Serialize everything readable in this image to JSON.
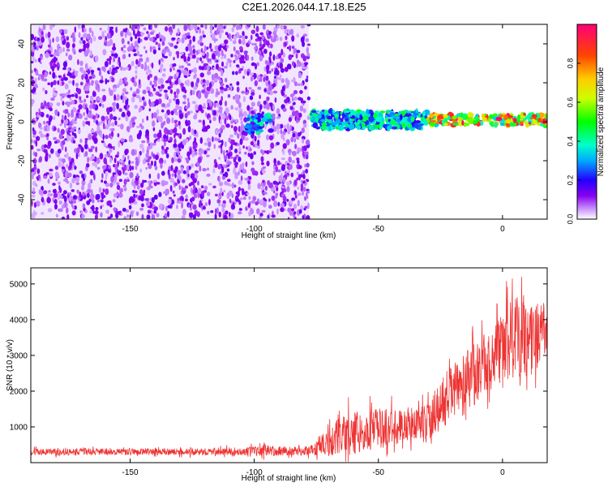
{
  "title": "C2E1.2026.044.17.18.E25",
  "colors": {
    "line": "#ee3333",
    "axis": "#000000",
    "background": "#ffffff"
  },
  "chart_data": [
    {
      "type": "heatmap",
      "name": "spectrogram",
      "xlabel": "Height of straight line (km)",
      "ylabel": "Frequency (Hz)",
      "xlim": [
        -190,
        18
      ],
      "ylim": [
        -50,
        50
      ],
      "xticks": [
        -150,
        -100,
        -50,
        0
      ],
      "xtick_labels": [
        "-150",
        "-100",
        "-50",
        "0"
      ],
      "yticks": [
        -40,
        -20,
        0,
        20,
        40
      ],
      "ytick_labels": [
        "-40",
        "-20",
        "0",
        "20",
        "40"
      ],
      "colorbar": {
        "label": "Normalized spectral amplitude",
        "range": [
          0,
          1
        ],
        "ticks": [
          0.0,
          0.2,
          0.4,
          0.6,
          0.8
        ],
        "tick_labels": [
          "0.0",
          "0.2",
          "0.4",
          "0.6",
          "0.8"
        ]
      },
      "regions": [
        {
          "x_from": -190,
          "x_to": -78,
          "freq_from": -50,
          "freq_to": 50,
          "amplitude": 0.15,
          "note": "broadband noise"
        },
        {
          "x_from": -103,
          "x_to": -93,
          "freq_from": -6,
          "freq_to": 4,
          "amplitude": 0.4
        },
        {
          "x_from": -77,
          "x_to": -30,
          "freq_from": -4,
          "freq_to": 6,
          "amplitude": 0.45
        },
        {
          "x_from": -30,
          "x_to": 18,
          "freq_from": -2,
          "freq_to": 4,
          "amplitude": 0.9,
          "note": "narrow tone near 2 Hz"
        }
      ]
    },
    {
      "type": "line",
      "name": "snr",
      "xlabel": "Height of straight line (km)",
      "ylabel": "SNR (10 * v/v)",
      "xlim": [
        -190,
        18
      ],
      "ylim": [
        0,
        5450
      ],
      "xticks": [
        -150,
        -100,
        -50,
        0
      ],
      "xtick_labels": [
        "-150",
        "-100",
        "-50",
        "0"
      ],
      "yticks": [
        1000,
        2000,
        3000,
        4000,
        5000
      ],
      "ytick_labels": [
        "1000",
        "2000",
        "3000",
        "4000",
        "5000"
      ],
      "series": [
        {
          "name": "SNR",
          "x": [
            -190,
            -180,
            -170,
            -160,
            -150,
            -140,
            -130,
            -120,
            -110,
            -100,
            -95,
            -90,
            -85,
            -80,
            -75,
            -70,
            -65,
            -60,
            -55,
            -50,
            -45,
            -40,
            -35,
            -30,
            -25,
            -20,
            -15,
            -10,
            -5,
            0,
            5,
            10,
            15,
            18
          ],
          "values": [
            300,
            300,
            310,
            300,
            300,
            310,
            300,
            300,
            320,
            320,
            350,
            330,
            320,
            320,
            400,
            600,
            750,
            850,
            900,
            950,
            1000,
            1050,
            1100,
            1100,
            1600,
            2000,
            2200,
            2600,
            2900,
            3200,
            3500,
            3400,
            3600,
            3800
          ],
          "spread": [
            120,
            120,
            120,
            120,
            120,
            120,
            120,
            120,
            130,
            160,
            200,
            160,
            150,
            150,
            250,
            500,
            700,
            800,
            700,
            700,
            650,
            650,
            600,
            700,
            900,
            1000,
            1100,
            1100,
            1000,
            1200,
            1500,
            1300,
            1200,
            900
          ]
        }
      ]
    }
  ]
}
